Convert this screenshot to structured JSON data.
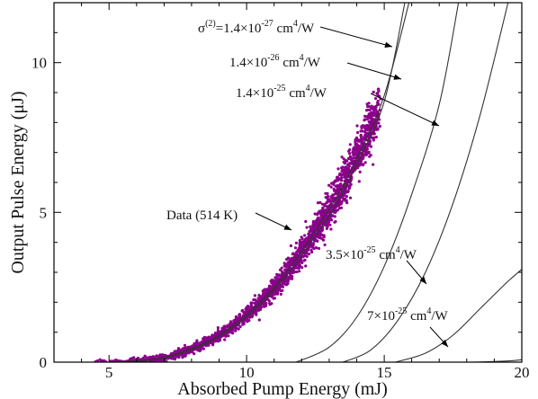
{
  "chart_data": {
    "type": "scatter",
    "xlabel": "Absorbed Pump Energy (mJ)",
    "ylabel": "Output Pulse Energy (μJ)",
    "xlim": [
      3,
      20
    ],
    "ylim": [
      0,
      12
    ],
    "x_ticks": [
      5,
      10,
      15,
      20
    ],
    "y_ticks": [
      0,
      5,
      10
    ],
    "grid": false,
    "colors": {
      "data": "#8b008b",
      "curve": "#333333",
      "axes": "#000000"
    },
    "scatter": {
      "name": "Data (514 K)",
      "x_range": [
        4.3,
        14.8
      ],
      "approx_fit": {
        "form": "y = a*(x - x0)^n",
        "a": 0.0283,
        "x0": 5.0,
        "n": 2.5
      },
      "approx_point_count": 2200
    },
    "series": [
      {
        "name": "σ(2)=1.4×10-27 cm4/W",
        "points": [
          [
            5.0,
            0
          ],
          [
            7,
            0.16
          ],
          [
            9,
            0.91
          ],
          [
            11,
            2.5
          ],
          [
            13,
            5.1
          ],
          [
            14,
            6.8
          ],
          [
            15,
            8.9
          ],
          [
            15.9,
            12.0
          ]
        ]
      },
      {
        "name": "1.4×10-26 cm4/W",
        "points": [
          [
            5.1,
            0
          ],
          [
            7,
            0.14
          ],
          [
            9,
            0.85
          ],
          [
            11,
            2.4
          ],
          [
            13,
            4.9
          ],
          [
            14,
            6.6
          ],
          [
            15,
            8.7
          ],
          [
            15.75,
            12.0
          ]
        ]
      },
      {
        "name": "1.4×10-25 cm4/W",
        "points": [
          [
            11.8,
            0
          ],
          [
            13,
            0.5
          ],
          [
            14,
            1.5
          ],
          [
            15,
            3.2
          ],
          [
            16,
            5.6
          ],
          [
            17,
            8.6
          ],
          [
            17.7,
            12.0
          ]
        ]
      },
      {
        "name": "3.5×10-25 cm4/W",
        "points": [
          [
            13.5,
            0
          ],
          [
            14.5,
            0.4
          ],
          [
            15.5,
            1.4
          ],
          [
            16.5,
            3.0
          ],
          [
            17.5,
            5.3
          ],
          [
            18.5,
            8.3
          ],
          [
            19.5,
            12.0
          ]
        ]
      },
      {
        "name": "7×10-25 cm4/W",
        "points": [
          [
            15.4,
            0
          ],
          [
            16.5,
            0.3
          ],
          [
            17.5,
            0.9
          ],
          [
            18.5,
            1.8
          ],
          [
            19.5,
            2.7
          ],
          [
            20,
            3.1
          ]
        ]
      },
      {
        "name": "",
        "points": [
          [
            17.5,
            0
          ],
          [
            18.5,
            0.005
          ],
          [
            19.5,
            0.04
          ],
          [
            20,
            0.08
          ]
        ]
      }
    ],
    "annotations": [
      {
        "text": "σ(2)=1.4×10-27 cm4/W",
        "parts": [
          "σ",
          "(2)",
          "=1.4×10",
          "-27",
          " cm",
          "4",
          "/W"
        ]
      },
      {
        "text": "1.4×10-26 cm4/W",
        "parts": [
          "",
          "",
          "1.4×10",
          "-26",
          " cm",
          "4",
          "/W"
        ]
      },
      {
        "text": "1.4×10-25 cm4/W",
        "parts": [
          "",
          "",
          "1.4×10",
          "-25",
          " cm",
          "4",
          "/W"
        ]
      },
      {
        "text": "Data (514 K)",
        "parts": [
          "",
          "",
          "Data (514 K)",
          "",
          "",
          "",
          ""
        ]
      },
      {
        "text": "3.5×10-25 cm4/W",
        "parts": [
          "",
          "",
          "3.5×10",
          "-25",
          " cm",
          "4",
          "/W"
        ]
      },
      {
        "text": "7×10-25 cm4/W",
        "parts": [
          "",
          "",
          "7×10",
          "-25",
          " cm",
          "4",
          "/W"
        ]
      }
    ]
  }
}
